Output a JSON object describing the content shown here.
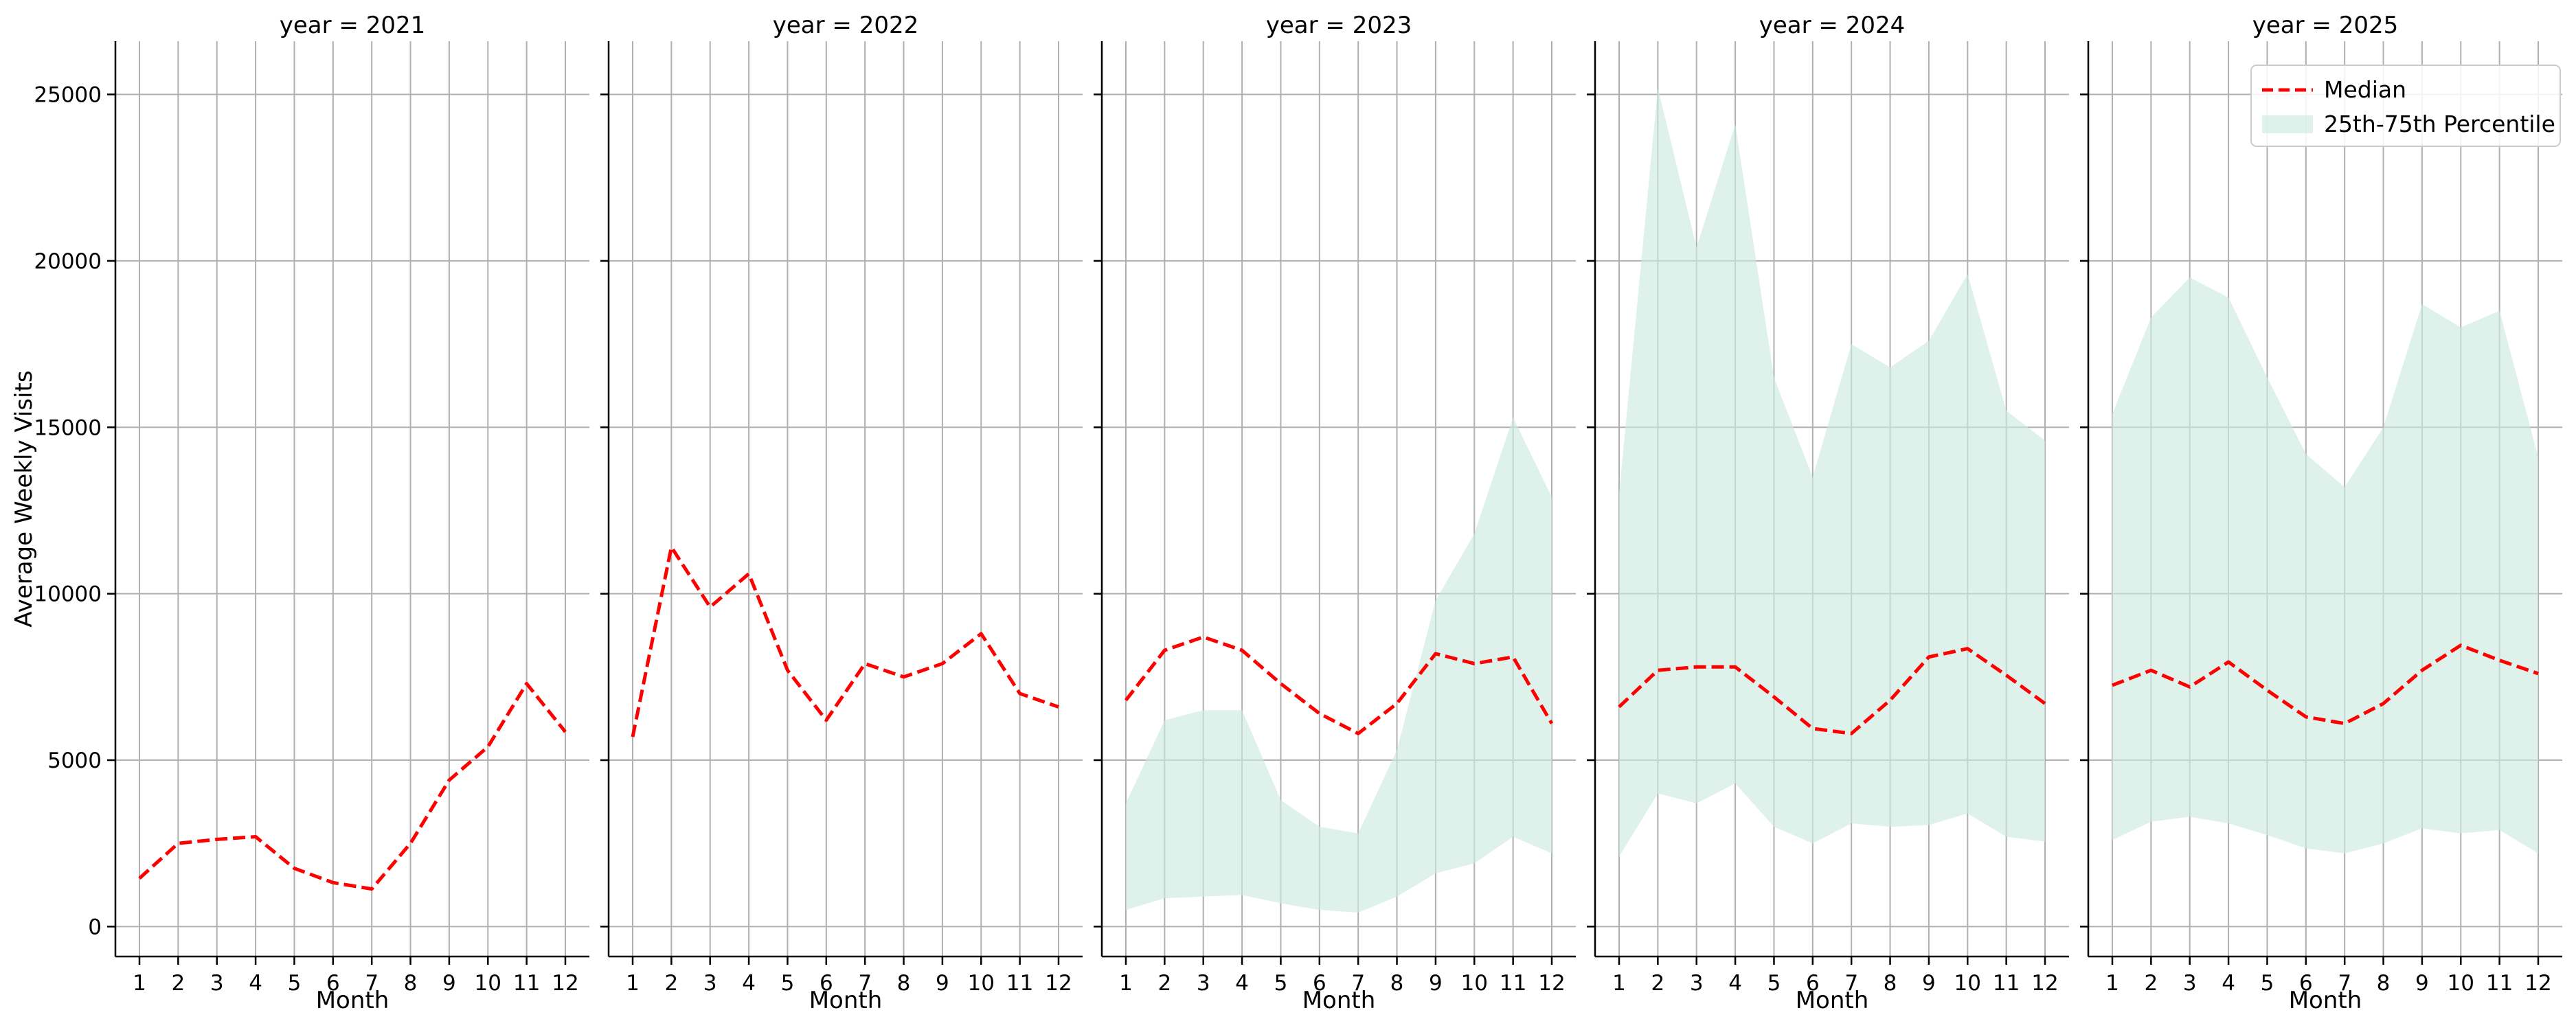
{
  "chart_data": {
    "type": "line",
    "ylabel": "Average Weekly Visits",
    "xlabel": "Month",
    "x": [
      1,
      2,
      3,
      4,
      5,
      6,
      7,
      8,
      9,
      10,
      11,
      12
    ],
    "ylim": [
      -900,
      26600
    ],
    "yticks": [
      0,
      5000,
      10000,
      15000,
      20000,
      25000
    ],
    "grid": true,
    "legend": {
      "placement": "top-right",
      "panel": "year = 2025",
      "entries": [
        {
          "label": "Median",
          "style": "dashed-line",
          "color": "#ff0000"
        },
        {
          "label": "25th-75th Percentile",
          "style": "filled-area",
          "color": "#cdebe0"
        }
      ]
    },
    "colors": {
      "median": "#ff0000",
      "band": "#cdebe0",
      "grid": "#b0b0b0"
    },
    "panels": [
      {
        "title": "year = 2021",
        "median": [
          1450,
          2500,
          2620,
          2700,
          1750,
          1320,
          1130,
          2500,
          4400,
          5400,
          7300,
          5850
        ],
        "p25": null,
        "p75": null
      },
      {
        "title": "year = 2022",
        "median": [
          5700,
          11400,
          9600,
          10600,
          7700,
          6200,
          7900,
          7500,
          7900,
          8800,
          7000,
          6600
        ],
        "p25": null,
        "p75": null
      },
      {
        "title": "year = 2023",
        "median": [
          6800,
          8300,
          8700,
          8300,
          7300,
          6400,
          5800,
          6700,
          8200,
          7900,
          8100,
          6100
        ],
        "p25": [
          500,
          850,
          900,
          950,
          700,
          500,
          420,
          900,
          1600,
          1900,
          2700,
          2200
        ],
        "p75": [
          3700,
          6200,
          6500,
          6500,
          3800,
          3000,
          2800,
          5300,
          9800,
          11800,
          15300,
          12900
        ]
      },
      {
        "title": "year = 2024",
        "median": [
          6600,
          7700,
          7800,
          7800,
          6900,
          5950,
          5800,
          6800,
          8100,
          8350,
          7550,
          6700
        ],
        "p25": [
          2100,
          4000,
          3700,
          4300,
          3000,
          2500,
          3100,
          3000,
          3050,
          3400,
          2700,
          2550
        ],
        "p75": [
          13000,
          25200,
          20400,
          24100,
          16500,
          13500,
          17500,
          16800,
          17600,
          19600,
          15500,
          14600
        ]
      },
      {
        "title": "year = 2025",
        "median": [
          7250,
          7700,
          7200,
          7950,
          7100,
          6300,
          6100,
          6700,
          7700,
          8450,
          8000,
          7600
        ],
        "p25": [
          2600,
          3150,
          3300,
          3100,
          2750,
          2350,
          2200,
          2500,
          2950,
          2800,
          2900,
          2200
        ],
        "p75": [
          15400,
          18300,
          19500,
          18900,
          16500,
          14200,
          13200,
          15000,
          18700,
          18000,
          18500,
          14100
        ]
      }
    ]
  }
}
